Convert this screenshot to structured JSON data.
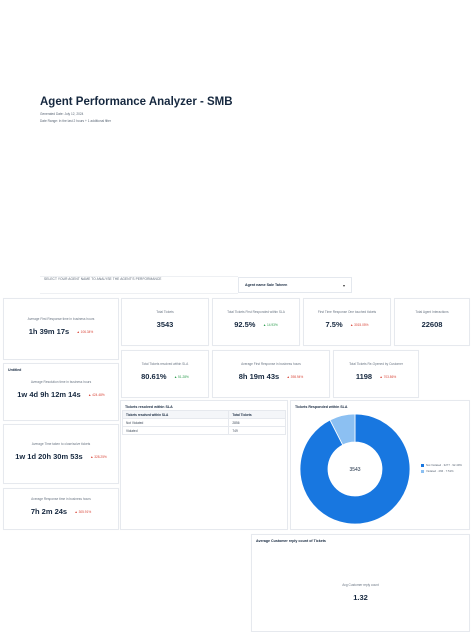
{
  "header": {
    "title": "Agent Performance Analyzer - SMB",
    "generated": "Generated Date: July 12, 2024",
    "range": "Date Range: In the last 2 hours + 1 additional filter"
  },
  "agent_filter": {
    "label": "SELECT YOUR AGENT NAME TO ANALYSE THE AGENT'S PERFORMANCE",
    "selected": "Agent name Sale Taheen",
    "chevron_icon": "chevron-down-icon"
  },
  "kpis": {
    "first_response": {
      "label": "Average First Response time in business hours",
      "value": "1h 39m 17s",
      "delta": "▲ 106.34%"
    },
    "total_tickets": {
      "label": "Total Tickets",
      "value": "3543"
    },
    "first_resp_sla": {
      "label": "Total Tickets First Responded within SLA",
      "value": "92.5%",
      "delta": "▲ 14.93%"
    },
    "one_touch": {
      "label": "First Time Response One touched tickets",
      "value": "7.5%",
      "delta": "▲ 3015.05%"
    },
    "interactions": {
      "label": "Total Agent Interactions",
      "value": "22608"
    },
    "resolved_sla": {
      "label": "Total Tickets resolved within SLA",
      "value": "80.61%",
      "delta": "▲ 51.28%"
    },
    "avg_first_response_biz": {
      "label": "Average First Response in business hours",
      "value": "8h 19m 43s",
      "delta": "▲ 398.94%"
    },
    "total_reopened": {
      "label": "Total Tickets Re-Opened by Customer",
      "value": "1198",
      "delta": "▲ 703.86%"
    },
    "resolution": {
      "title": "Untitled",
      "label": "Average Resolution time in business hours",
      "value": "1w 4d 9h 12m 14s",
      "delta": "▲ 424.48%"
    },
    "close_time": {
      "label": "Average Time taken to close/solve tickets",
      "value": "1w 1d 20h 30m 53s",
      "delta": "▲ 328.25%"
    },
    "avg_response": {
      "label": "Average Response time in business hours",
      "value": "7h 2m 24s",
      "delta": "▲ 305.91%"
    },
    "reply_count": {
      "title": "Average Customer reply count of Tickets",
      "label": "Avg Customer reply count",
      "value": "1.32"
    }
  },
  "sla_table": {
    "title": "Tickets resolved within SLA",
    "headers": [
      "Tickets resolved within SLA",
      "Total Tickets"
    ],
    "rows": [
      [
        "Not Violated",
        "2856"
      ],
      [
        "Violated",
        "749"
      ]
    ]
  },
  "donut": {
    "title": "Tickets Responded within SLA",
    "center_label": "3543",
    "colors": {
      "primary": "#1877e0",
      "secondary": "#8cc0f2"
    }
  },
  "chart_data": {
    "type": "pie",
    "title": "Tickets Responded within SLA",
    "categories": [
      "Not Violated",
      "Violated"
    ],
    "values": [
      3277,
      266
    ],
    "legend_labels": [
      "Not Violated · 3277 · 92.49%",
      "Violated · 266 · 7.51%"
    ]
  }
}
